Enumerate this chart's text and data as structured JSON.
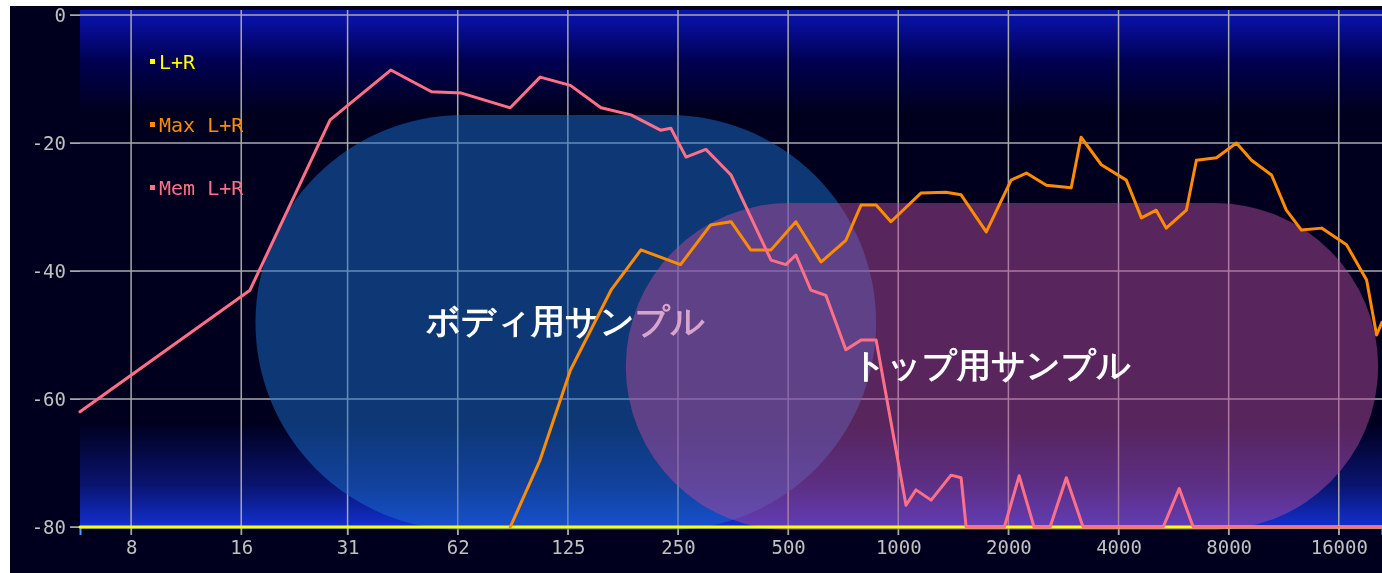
{
  "chart_data": {
    "type": "line",
    "log": "x",
    "grid": true,
    "legend": "top left",
    "marker": "none",
    "line_style": "solid",
    "xlim": [
      5.8,
      21000
    ],
    "ylim": [
      -80,
      0
    ],
    "xticks": [
      8,
      16,
      {
        "value": 31.25,
        "label": "31"
      },
      {
        "value": 62.5,
        "label": "62"
      },
      125,
      250,
      500,
      1000,
      2000,
      4000,
      8000,
      16000
    ],
    "yticks": [
      0,
      -20,
      -40,
      -60,
      -80
    ],
    "bands": [
      {
        "axis": "x",
        "from": 17.5,
        "to": 870,
        "label": "ボディ用サンプル",
        "color": "#1a70cc"
      },
      {
        "axis": "x",
        "from": 180,
        "to": 20500,
        "label": "トップ用サンプル",
        "color": "#b04a9a"
      }
    ],
    "series": [
      {
        "name": "L+R",
        "color": "#ffff00",
        "x": [
          5.8,
          21000
        ],
        "values": [
          -80,
          -80
        ]
      },
      {
        "name": "Max L+R",
        "color": "#ff8c00",
        "x": [
          87,
          105,
          127,
          164,
          198,
          254,
          307,
          349,
          395,
          449,
          525,
          615,
          719,
          791,
          870,
          955,
          1155,
          1350,
          1485,
          1740,
          2035,
          2240,
          2540,
          2970,
          3160,
          3590,
          4200,
          4620,
          5070,
          5400,
          6130,
          6530,
          7410,
          8400,
          9240,
          10480,
          11500,
          12650,
          14360,
          16800,
          19060,
          20300,
          21000
        ],
        "values": [
          -80,
          -69.5,
          -55.5,
          -43,
          -36.7,
          -39,
          -32.8,
          -32.3,
          -36.7,
          -36.7,
          -32.3,
          -38.6,
          -35.2,
          -29.7,
          -29.7,
          -32.3,
          -27.8,
          -27.7,
          -28.1,
          -33.9,
          -25.8,
          -24.7,
          -26.6,
          -27,
          -19.1,
          -23.4,
          -25.8,
          -31.7,
          -30.5,
          -33.3,
          -30.5,
          -22.7,
          -22.3,
          -20,
          -22.7,
          -25,
          -30.5,
          -33.6,
          -33.3,
          -35.9,
          -41.4,
          -50,
          -48
        ]
      },
      {
        "name": "Mem L+R",
        "color": "#ff7088",
        "x": [
          5.8,
          16.9,
          28,
          41,
          53,
          64,
          87,
          105,
          127,
          154,
          186,
          224,
          239,
          263,
          298,
          349,
          449,
          493,
          525,
          577,
          634,
          719,
          791,
          870,
          1050,
          1118,
          1230,
          1394,
          1485,
          1533,
          1950,
          2140,
          2350,
          2600,
          2880,
          3200,
          5300,
          5860,
          6400,
          21000
        ],
        "values": [
          -62,
          -43,
          -16.4,
          -8.6,
          -12,
          -12.2,
          -14.5,
          -9.7,
          -11,
          -14.5,
          -15.6,
          -18,
          -17.7,
          -22.2,
          -21,
          -25,
          -38.3,
          -39,
          -37.5,
          -43,
          -43.8,
          -52.3,
          -50.8,
          -50.8,
          -76.6,
          -74.2,
          -75.8,
          -71.9,
          -72.3,
          -80,
          -80,
          -72,
          -80,
          -80,
          -72.3,
          -80,
          -80,
          -74,
          -80,
          -80
        ]
      }
    ]
  }
}
